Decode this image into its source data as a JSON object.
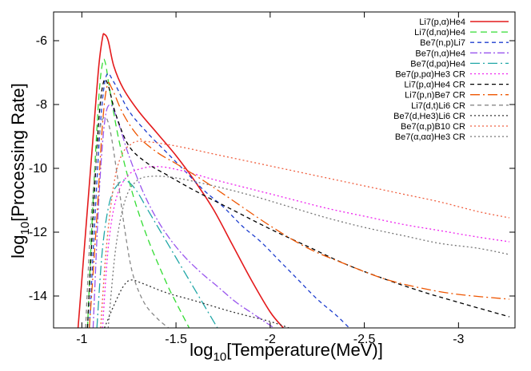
{
  "chart_data": {
    "type": "line",
    "title": "",
    "xlabel_base": "log",
    "xlabel_sub": "10",
    "xlabel_rest": "[Temperature(MeV)]",
    "ylabel_base": "log",
    "ylabel_sub": "10",
    "ylabel_rest": "[Processing Rate]",
    "xlim": [
      -0.85,
      -3.3
    ],
    "ylim": [
      -15,
      -5.1
    ],
    "x_ticks": [
      -1,
      -1.5,
      -2,
      -2.5,
      -3
    ],
    "x_tick_labels": [
      "-1",
      "-1.5",
      "-2",
      "-2.5",
      "-3"
    ],
    "y_ticks": [
      -6,
      -8,
      -10,
      -12,
      -14
    ],
    "y_tick_labels": [
      "-6",
      "-8",
      "-10",
      "-12",
      "-14"
    ],
    "grid": false,
    "legend_position": "top-right",
    "series": [
      {
        "name": "Li7(p,α)He4",
        "color": "#e41a1c",
        "dash": "",
        "points": [
          [
            -0.98,
            -15.0
          ],
          [
            -1.02,
            -12.0
          ],
          [
            -1.06,
            -9.0
          ],
          [
            -1.09,
            -6.8
          ],
          [
            -1.11,
            -5.9
          ],
          [
            -1.12,
            -5.8
          ],
          [
            -1.14,
            -6.0
          ],
          [
            -1.17,
            -6.8
          ],
          [
            -1.22,
            -7.5
          ],
          [
            -1.3,
            -8.2
          ],
          [
            -1.4,
            -8.9
          ],
          [
            -1.5,
            -9.6
          ],
          [
            -1.6,
            -10.4
          ],
          [
            -1.7,
            -11.3
          ],
          [
            -1.8,
            -12.4
          ],
          [
            -1.9,
            -13.5
          ],
          [
            -2.0,
            -14.5
          ],
          [
            -2.07,
            -15.0
          ]
        ]
      },
      {
        "name": "Li7(d,nα)He4",
        "color": "#33dd33",
        "dash": "8,5",
        "points": [
          [
            -1.03,
            -15.0
          ],
          [
            -1.06,
            -11.0
          ],
          [
            -1.09,
            -7.8
          ],
          [
            -1.11,
            -6.7
          ],
          [
            -1.125,
            -6.7
          ],
          [
            -1.15,
            -7.6
          ],
          [
            -1.2,
            -9.2
          ],
          [
            -1.27,
            -10.8
          ],
          [
            -1.35,
            -12.2
          ],
          [
            -1.45,
            -13.6
          ],
          [
            -1.5,
            -14.2
          ],
          [
            -1.57,
            -15.0
          ]
        ]
      },
      {
        "name": "Be7(n,p)Li7",
        "color": "#1f3fcf",
        "dash": "5,4",
        "points": [
          [
            -1.04,
            -15.0
          ],
          [
            -1.07,
            -11.5
          ],
          [
            -1.1,
            -8.5
          ],
          [
            -1.13,
            -7.1
          ],
          [
            -1.17,
            -7.3
          ],
          [
            -1.25,
            -8.2
          ],
          [
            -1.35,
            -8.9
          ],
          [
            -1.45,
            -9.5
          ],
          [
            -1.55,
            -10.1
          ],
          [
            -1.65,
            -10.7
          ],
          [
            -1.75,
            -11.2
          ],
          [
            -1.85,
            -11.8
          ],
          [
            -1.95,
            -12.3
          ],
          [
            -2.05,
            -12.9
          ],
          [
            -2.15,
            -13.5
          ],
          [
            -2.25,
            -14.1
          ],
          [
            -2.35,
            -14.6
          ],
          [
            -2.42,
            -15.0
          ]
        ]
      },
      {
        "name": "Be7(n,α)He4",
        "color": "#9955ee",
        "dash": "9,3,2,3",
        "points": [
          [
            -1.06,
            -15.0
          ],
          [
            -1.09,
            -11.0
          ],
          [
            -1.12,
            -8.6
          ],
          [
            -1.15,
            -8.0
          ],
          [
            -1.19,
            -8.5
          ],
          [
            -1.25,
            -9.6
          ],
          [
            -1.33,
            -10.8
          ],
          [
            -1.42,
            -11.8
          ],
          [
            -1.52,
            -12.6
          ],
          [
            -1.62,
            -13.2
          ],
          [
            -1.72,
            -13.7
          ],
          [
            -1.82,
            -14.2
          ],
          [
            -1.92,
            -14.6
          ],
          [
            -2.02,
            -15.0
          ]
        ]
      },
      {
        "name": "Be7(d,pα)He4",
        "color": "#21a7a7",
        "dash": "12,4,2,4",
        "points": [
          [
            -1.08,
            -15.0
          ],
          [
            -1.11,
            -12.5
          ],
          [
            -1.15,
            -11.0
          ],
          [
            -1.2,
            -10.45
          ],
          [
            -1.24,
            -10.4
          ],
          [
            -1.29,
            -10.7
          ],
          [
            -1.35,
            -11.3
          ],
          [
            -1.42,
            -12.0
          ],
          [
            -1.5,
            -12.8
          ],
          [
            -1.58,
            -13.6
          ],
          [
            -1.66,
            -14.4
          ],
          [
            -1.72,
            -15.0
          ]
        ]
      },
      {
        "name": "Be7(p,pα)He3 CR",
        "color": "#ee22ee",
        "dash": "2,3",
        "points": [
          [
            -1.11,
            -15.0
          ],
          [
            -1.14,
            -12.5
          ],
          [
            -1.18,
            -11.0
          ],
          [
            -1.24,
            -10.25
          ],
          [
            -1.32,
            -10.0
          ],
          [
            -1.42,
            -9.95
          ],
          [
            -1.55,
            -10.1
          ],
          [
            -1.7,
            -10.35
          ],
          [
            -1.9,
            -10.65
          ],
          [
            -2.1,
            -10.95
          ],
          [
            -2.3,
            -11.25
          ],
          [
            -2.5,
            -11.5
          ],
          [
            -2.7,
            -11.75
          ],
          [
            -2.9,
            -11.95
          ],
          [
            -3.1,
            -12.15
          ],
          [
            -3.27,
            -12.3
          ]
        ]
      },
      {
        "name": "Li7(p,α)He4 CR",
        "color": "#000000",
        "dash": "5,4",
        "points": [
          [
            -1.03,
            -15.0
          ],
          [
            -1.06,
            -11.5
          ],
          [
            -1.09,
            -8.5
          ],
          [
            -1.115,
            -7.3
          ],
          [
            -1.14,
            -7.4
          ],
          [
            -1.18,
            -8.3
          ],
          [
            -1.25,
            -9.3
          ],
          [
            -1.35,
            -9.85
          ],
          [
            -1.45,
            -10.2
          ],
          [
            -1.6,
            -10.7
          ],
          [
            -1.8,
            -11.3
          ],
          [
            -2.0,
            -11.9
          ],
          [
            -2.2,
            -12.45
          ],
          [
            -2.4,
            -13.0
          ],
          [
            -2.6,
            -13.45
          ],
          [
            -2.8,
            -13.85
          ],
          [
            -3.0,
            -14.2
          ],
          [
            -3.27,
            -14.65
          ]
        ]
      },
      {
        "name": "Li7(p,n)Be7 CR",
        "color": "#ee5500",
        "dash": "12,4,2,4",
        "points": [
          [
            -1.04,
            -15.0
          ],
          [
            -1.08,
            -11.5
          ],
          [
            -1.11,
            -8.6
          ],
          [
            -1.135,
            -7.4
          ],
          [
            -1.16,
            -7.5
          ],
          [
            -1.22,
            -8.3
          ],
          [
            -1.3,
            -9.0
          ],
          [
            -1.4,
            -9.5
          ],
          [
            -1.5,
            -9.85
          ],
          [
            -1.65,
            -10.4
          ],
          [
            -1.8,
            -11.0
          ],
          [
            -2.0,
            -11.8
          ],
          [
            -2.2,
            -12.5
          ],
          [
            -2.4,
            -13.0
          ],
          [
            -2.6,
            -13.45
          ],
          [
            -2.8,
            -13.75
          ],
          [
            -3.0,
            -13.95
          ],
          [
            -3.27,
            -14.1
          ]
        ]
      },
      {
        "name": "Li7(d,t)Li6 CR",
        "color": "#888888",
        "dash": "5,4",
        "points": [
          [
            -1.02,
            -15.0
          ],
          [
            -1.05,
            -11.5
          ],
          [
            -1.09,
            -9.0
          ],
          [
            -1.12,
            -8.4
          ],
          [
            -1.15,
            -8.8
          ],
          [
            -1.19,
            -10.3
          ],
          [
            -1.23,
            -12.0
          ],
          [
            -1.27,
            -13.3
          ],
          [
            -1.33,
            -14.2
          ],
          [
            -1.4,
            -14.7
          ],
          [
            -1.46,
            -15.0
          ]
        ]
      },
      {
        "name": "Be7(d,He3)Li6 CR",
        "color": "#333333",
        "dash": "2,3",
        "points": [
          [
            -1.12,
            -15.0
          ],
          [
            -1.17,
            -14.3
          ],
          [
            -1.22,
            -13.7
          ],
          [
            -1.26,
            -13.5
          ],
          [
            -1.32,
            -13.6
          ],
          [
            -1.45,
            -13.9
          ],
          [
            -1.6,
            -14.15
          ],
          [
            -1.8,
            -14.5
          ],
          [
            -2.0,
            -14.8
          ],
          [
            -2.1,
            -15.0
          ]
        ]
      },
      {
        "name": "Be7(α,p)B10 CR",
        "color": "#f06040",
        "dash": "2,3",
        "points": [
          [
            -1.1,
            -15.0
          ],
          [
            -1.13,
            -12.5
          ],
          [
            -1.17,
            -10.5
          ],
          [
            -1.21,
            -9.6
          ],
          [
            -1.26,
            -9.25
          ],
          [
            -1.32,
            -9.15
          ],
          [
            -1.5,
            -9.3
          ],
          [
            -1.7,
            -9.55
          ],
          [
            -1.9,
            -9.8
          ],
          [
            -2.1,
            -10.05
          ],
          [
            -2.3,
            -10.3
          ],
          [
            -2.5,
            -10.55
          ],
          [
            -2.7,
            -10.8
          ],
          [
            -2.9,
            -11.05
          ],
          [
            -3.1,
            -11.35
          ],
          [
            -3.27,
            -11.55
          ]
        ]
      },
      {
        "name": "Be7(α,αα)He3 CR",
        "color": "#777777",
        "dash": "2,3",
        "points": [
          [
            -1.14,
            -15.0
          ],
          [
            -1.18,
            -12.5
          ],
          [
            -1.23,
            -11.0
          ],
          [
            -1.29,
            -10.4
          ],
          [
            -1.37,
            -10.25
          ],
          [
            -1.5,
            -10.3
          ],
          [
            -1.7,
            -10.55
          ],
          [
            -1.9,
            -10.85
          ],
          [
            -2.1,
            -11.2
          ],
          [
            -2.3,
            -11.55
          ],
          [
            -2.5,
            -11.85
          ],
          [
            -2.7,
            -12.1
          ],
          [
            -2.9,
            -12.35
          ],
          [
            -3.1,
            -12.5
          ],
          [
            -3.27,
            -12.7
          ]
        ]
      }
    ]
  }
}
